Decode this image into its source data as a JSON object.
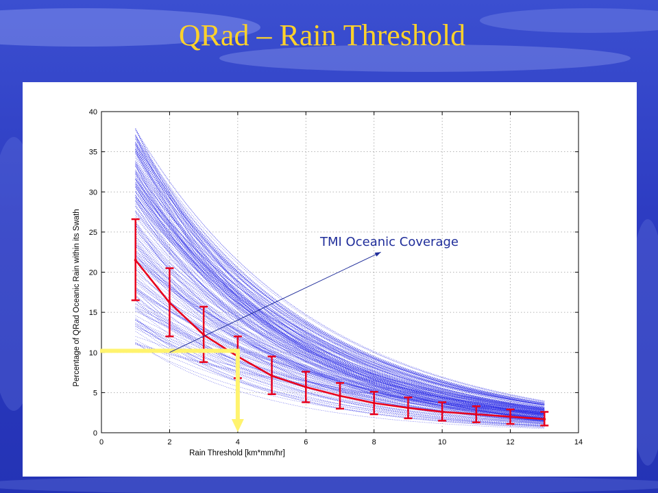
{
  "slide": {
    "title": "QRad – Rain Threshold",
    "colors": {
      "background": "#2f3fc4",
      "title": "#ffd22a",
      "panel": "#ffffff"
    }
  },
  "chart_data": {
    "type": "line",
    "title": "",
    "xlabel": "Rain Threshold [km*mm/hr]",
    "ylabel": "Percentage of QRad Oceanic Rain within its Swath",
    "xlim": [
      0,
      14
    ],
    "ylim": [
      0,
      40
    ],
    "xticks": [
      0,
      2,
      4,
      6,
      8,
      10,
      12,
      14
    ],
    "yticks": [
      0,
      5,
      10,
      15,
      20,
      25,
      30,
      35,
      40
    ],
    "grid": true,
    "ensemble": {
      "color": "#2a2ae6",
      "style": "dotted",
      "count": 220,
      "x_range": [
        1,
        13
      ],
      "approx_range_at_x1": [
        11,
        38
      ],
      "approx_range_at_x13": [
        0.5,
        4
      ]
    },
    "mean_series": {
      "color": "#e8001c",
      "x": [
        1,
        2,
        3,
        4,
        5,
        6,
        7,
        8,
        9,
        10,
        11,
        12,
        13
      ],
      "y": [
        21.5,
        16.2,
        12.2,
        9.5,
        7.1,
        5.7,
        4.6,
        3.7,
        3.1,
        2.6,
        2.3,
        2.0,
        1.7
      ],
      "err_low": [
        16.5,
        12.0,
        8.8,
        6.8,
        4.8,
        3.8,
        3.0,
        2.3,
        1.8,
        1.5,
        1.3,
        1.1,
        0.9
      ],
      "err_high": [
        26.6,
        20.5,
        15.7,
        12.0,
        9.5,
        7.6,
        6.2,
        5.1,
        4.4,
        3.8,
        3.3,
        2.9,
        2.6
      ]
    },
    "annotation": {
      "text": "TMI Oceanic Coverage",
      "color": "#1f2d9a",
      "points_from": [
        2,
        10
      ],
      "points_to": [
        8.2,
        22.5
      ]
    },
    "threshold_marker": {
      "color": "#fff36e",
      "y_value": 10.2,
      "x_value": 4
    }
  }
}
